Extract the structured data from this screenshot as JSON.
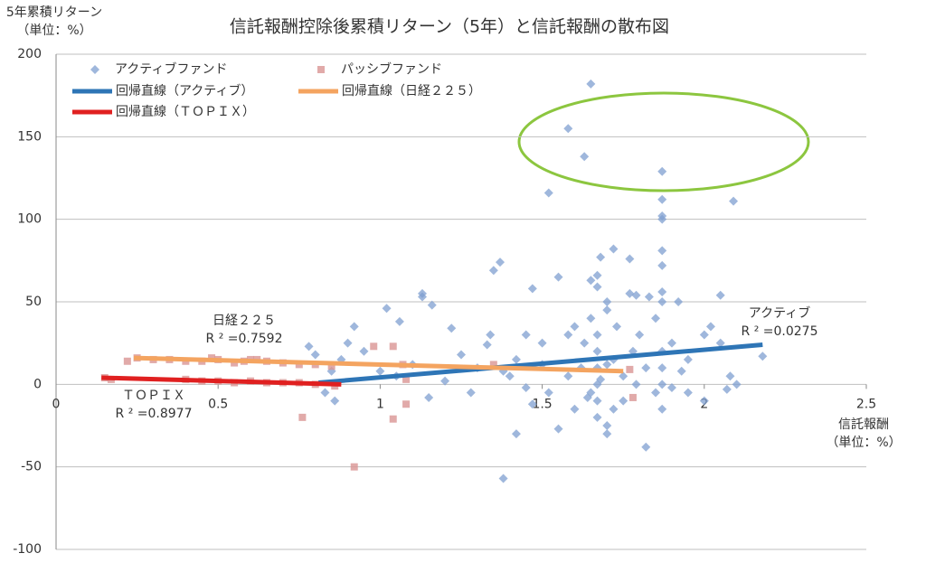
{
  "chart_data": {
    "type": "scatter",
    "title": "信託報酬控除後累積リターン（5年）と信託報酬の散布図",
    "y_label": [
      "5年累積リターン",
      "（単位：%）"
    ],
    "x_label": [
      "信託報酬",
      "（単位：%）"
    ],
    "xlim": [
      0,
      2.5
    ],
    "xticks": [
      0,
      0.5,
      1,
      1.5,
      2,
      2.5
    ],
    "ylim": [
      -100,
      200
    ],
    "yticks": [
      -100,
      -50,
      0,
      50,
      100,
      150,
      200
    ],
    "grid": true,
    "series": [
      {
        "name": "アクティブファンド",
        "color": "#7f9fd0",
        "marker": "diamond",
        "x": [
          1.58,
          1.65,
          1.63,
          1.52,
          1.87,
          1.87,
          1.87,
          2.09,
          1.87,
          1.37,
          1.35,
          1.72,
          1.68,
          1.77,
          1.87,
          1.87,
          1.55,
          1.47,
          1.65,
          1.67,
          1.67,
          1.87,
          1.87,
          1.79,
          1.83,
          1.92,
          2.05,
          1.13,
          1.13,
          1.02,
          1.06,
          1.16,
          1.22,
          1.34,
          1.45,
          1.5,
          1.58,
          1.6,
          1.65,
          1.67,
          1.67,
          1.67,
          1.67,
          1.67,
          1.67,
          1.7,
          1.7,
          1.72,
          1.75,
          1.75,
          1.82,
          1.8,
          1.85,
          1.87,
          1.87,
          1.87,
          1.87,
          1.9,
          1.95,
          2.0,
          2.02,
          2.05,
          2.08,
          2.1,
          1.95,
          2.0,
          1.38,
          1.42,
          1.47,
          1.52,
          1.55,
          1.6,
          1.62,
          1.4,
          1.42,
          1.3,
          1.28,
          1.2,
          1.15,
          1.1,
          1.05,
          1.0,
          0.95,
          0.92,
          0.9,
          0.88,
          0.85,
          0.78,
          0.8,
          0.86,
          0.83,
          1.25,
          1.33,
          1.38,
          1.45,
          1.5,
          1.58,
          1.63,
          1.65,
          1.7,
          1.73,
          1.78,
          1.82,
          1.9,
          1.93,
          2.07,
          1.7,
          1.77,
          1.85,
          2.18,
          1.7,
          1.72,
          1.64,
          1.68,
          1.79
        ],
        "values": [
          155,
          182,
          138,
          116,
          129,
          112,
          102,
          111,
          100,
          74,
          69,
          82,
          77,
          76,
          81,
          72,
          65,
          58,
          63,
          66,
          59,
          56,
          50,
          54,
          53,
          50,
          54,
          55,
          53,
          46,
          38,
          48,
          34,
          30,
          30,
          25,
          30,
          35,
          40,
          30,
          20,
          10,
          0,
          -10,
          -20,
          -25,
          -30,
          15,
          5,
          -10,
          -38,
          30,
          40,
          20,
          10,
          0,
          -15,
          25,
          15,
          30,
          35,
          25,
          5,
          0,
          -5,
          -10,
          -57,
          -30,
          -12,
          -5,
          -27,
          -15,
          10,
          5,
          15,
          10,
          -5,
          2,
          -8,
          12,
          5,
          8,
          20,
          35,
          25,
          15,
          8,
          23,
          18,
          -10,
          -5,
          18,
          24,
          8,
          -2,
          12,
          5,
          25,
          -5,
          45,
          35,
          20,
          10,
          -2,
          8,
          -3,
          50,
          55,
          -5,
          17,
          12,
          -15,
          -8,
          3,
          0
        ]
      },
      {
        "name": "パッシブファンド",
        "color": "#d99594",
        "marker": "square",
        "x": [
          0.15,
          0.17,
          0.22,
          0.25,
          0.3,
          0.35,
          0.4,
          0.45,
          0.5,
          0.55,
          0.58,
          0.6,
          0.65,
          0.7,
          0.75,
          0.8,
          0.85,
          0.4,
          0.45,
          0.5,
          0.55,
          0.6,
          0.65,
          0.7,
          0.75,
          0.8,
          0.86,
          0.76,
          0.92,
          0.98,
          1.04,
          1.04,
          1.08,
          1.08,
          1.07,
          1.35,
          1.78,
          1.77,
          0.62,
          0.48
        ],
        "values": [
          4,
          3,
          14,
          16,
          15,
          15,
          14,
          14,
          15,
          13,
          14,
          15,
          14,
          13,
          12,
          12,
          11,
          3,
          2,
          2,
          1,
          2,
          1,
          1,
          1,
          0,
          -1,
          -20,
          -50,
          23,
          23,
          -21,
          -12,
          3,
          12,
          12,
          -8,
          9,
          15,
          16
        ]
      }
    ],
    "lines": [
      {
        "name": "回帰直線（アクティブ）",
        "color": "#2e75b6",
        "x": [
          0.81,
          2.18
        ],
        "values": [
          1,
          24
        ]
      },
      {
        "name": "回帰直線（日経２２５）",
        "color": "#f4a460",
        "x": [
          0.24,
          1.75
        ],
        "values": [
          16,
          8
        ]
      },
      {
        "name": "回帰直線（ＴＯＰＩＸ）",
        "color": "#e02020",
        "x": [
          0.14,
          0.88
        ],
        "values": [
          4,
          0
        ]
      }
    ],
    "annotations": [
      "日経２２５",
      "R ² =0.7592",
      "ＴＯＰＩＸ",
      "R ² =0.8977",
      "アクティブ",
      "R ² =0.0275"
    ]
  }
}
